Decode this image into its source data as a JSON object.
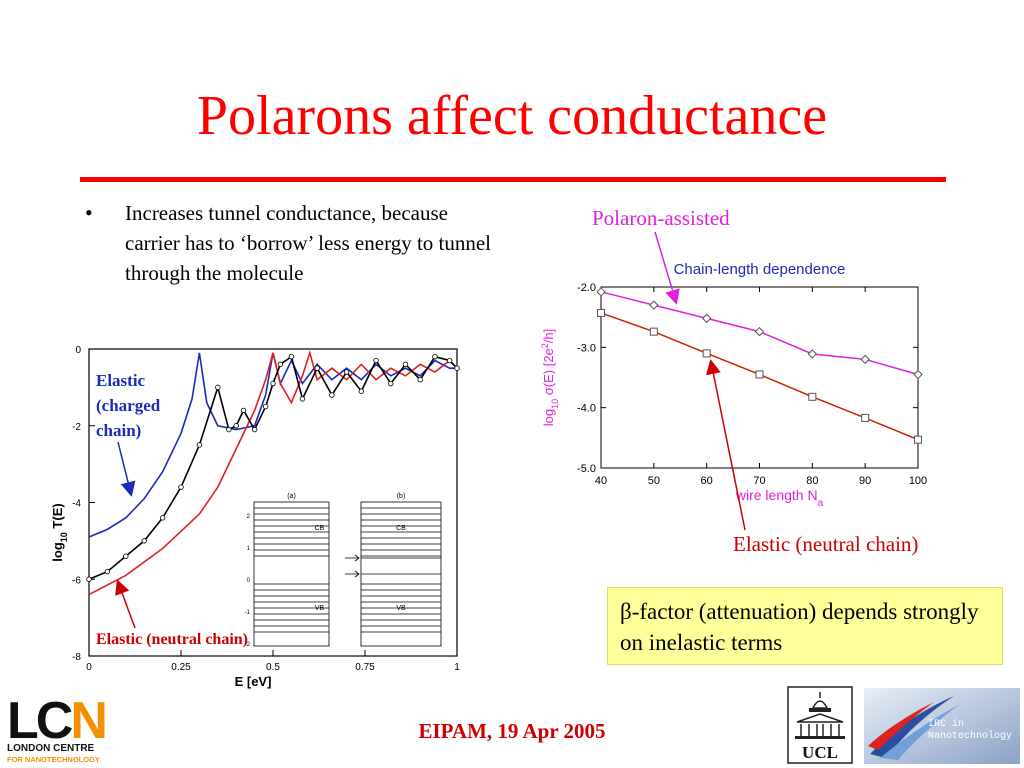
{
  "slide": {
    "title": "Polarons affect conductance",
    "bullet_symbol": "•",
    "bullet_text": "Increases tunnel conductance, because carrier has to ‘borrow’ less energy to tunnel through the molecule",
    "labels": {
      "polaron_assisted": "Polaron-assisted",
      "elastic_neutral_right": "Elastic (neutral chain)",
      "elastic_charged_line1": "Elastic",
      "elastic_charged_line2": "(charged",
      "elastic_charged_line3": "chain)",
      "elastic_neutral_left": "Elastic (neutral chain)"
    },
    "beta_box": "β-factor (attenuation) depends strongly on inelastic terms",
    "footer": "EIPAM, 19 Apr 2005",
    "logos": {
      "lcn_letters": "LCN",
      "lcn_line1": "LONDON CENTRE",
      "lcn_line2": "FOR NANOTECHNOLOGY",
      "ucl": "UCL",
      "irc_line1": "IRC in",
      "irc_line2": "Nanotechnology"
    },
    "colors": {
      "title": "#ff0000",
      "magenta": "#e020e0",
      "dark_red": "#cc0000",
      "navy": "#1a2bb8",
      "beta_bg": "#ffff99"
    }
  },
  "chart_data": [
    {
      "type": "line",
      "title": "Chain-length dependence",
      "xlabel": "wire length Na",
      "ylabel": "log10 σ(E) [2e2/h]",
      "xlim": [
        40,
        100
      ],
      "ylim": [
        -5.0,
        -2.0
      ],
      "xticks": [
        40,
        50,
        60,
        70,
        80,
        90,
        100
      ],
      "yticks": [
        -2.0,
        -3.0,
        -4.0,
        -5.0
      ],
      "series": [
        {
          "marker": "diamond",
          "color": "#e020e0",
          "x": [
            40,
            50,
            60,
            70,
            80,
            90,
            100
          ],
          "values": [
            -2.08,
            -2.3,
            -2.52,
            -2.74,
            -3.11,
            -3.2,
            -3.45
          ]
        },
        {
          "marker": "square",
          "color": "#cc2200",
          "x": [
            40,
            50,
            60,
            70,
            80,
            90,
            100
          ],
          "values": [
            -2.43,
            -2.74,
            -3.1,
            -3.45,
            -3.82,
            -4.17,
            -4.53
          ]
        }
      ]
    },
    {
      "type": "line",
      "xlabel": "E [eV]",
      "ylabel": "log10 T(E)",
      "xlim": [
        0,
        1
      ],
      "ylim": [
        -8,
        0
      ],
      "xticks": [
        "0",
        "0.25",
        "0.5",
        "0.75",
        "1"
      ],
      "yticks": [
        "0",
        "-2",
        "-4",
        "-6",
        "-8"
      ],
      "series": [
        {
          "color": "#1a2bb8",
          "x": [
            0,
            0.05,
            0.1,
            0.15,
            0.2,
            0.25,
            0.28,
            0.3,
            0.32,
            0.35,
            0.4,
            0.45,
            0.48,
            0.5,
            0.52,
            0.55,
            0.58,
            0.62,
            0.66,
            0.7,
            0.74,
            0.78,
            0.82,
            0.86,
            0.9,
            0.94,
            0.98,
            1.0
          ],
          "values": [
            -4.9,
            -4.7,
            -4.4,
            -3.9,
            -3.2,
            -2.2,
            -1.3,
            -0.1,
            -1.4,
            -2.0,
            -2.1,
            -2.0,
            -1.2,
            -0.1,
            -0.9,
            -0.3,
            -0.9,
            -0.4,
            -0.8,
            -0.5,
            -0.8,
            -0.4,
            -0.7,
            -0.5,
            -0.7,
            -0.3,
            -0.5,
            -0.5
          ]
        },
        {
          "color": "#e02020",
          "x": [
            0,
            0.1,
            0.2,
            0.3,
            0.35,
            0.4,
            0.45,
            0.48,
            0.5,
            0.52,
            0.55,
            0.58,
            0.6,
            0.62,
            0.66,
            0.7,
            0.74,
            0.78,
            0.82,
            0.86,
            0.9,
            0.94,
            0.98,
            1.0
          ],
          "values": [
            -6.4,
            -5.9,
            -5.2,
            -4.3,
            -3.6,
            -2.6,
            -1.6,
            -0.8,
            -0.1,
            -0.9,
            -1.4,
            -0.7,
            -0.1,
            -0.8,
            -0.5,
            -0.8,
            -0.4,
            -0.8,
            -0.5,
            -0.7,
            -0.4,
            -0.6,
            -0.3,
            -0.5
          ]
        },
        {
          "color": "#000000",
          "x": [
            0,
            0.05,
            0.1,
            0.15,
            0.2,
            0.25,
            0.3,
            0.35,
            0.38,
            0.4,
            0.42,
            0.45,
            0.48,
            0.5,
            0.52,
            0.55,
            0.58,
            0.62,
            0.66,
            0.7,
            0.74,
            0.78,
            0.82,
            0.86,
            0.9,
            0.94,
            0.98,
            1.0
          ],
          "values": [
            -6.0,
            -5.8,
            -5.4,
            -5.0,
            -4.4,
            -3.6,
            -2.5,
            -1.0,
            -2.1,
            -2.0,
            -1.6,
            -2.1,
            -1.5,
            -0.9,
            -0.4,
            -0.2,
            -1.3,
            -0.5,
            -1.2,
            -0.6,
            -1.1,
            -0.3,
            -0.9,
            -0.4,
            -0.8,
            -0.2,
            -0.3,
            -0.5
          ]
        }
      ],
      "inset": {
        "panels": [
          "(a)",
          "(b)"
        ],
        "yticks": [
          "2",
          "1",
          "0",
          "-1",
          "-2"
        ],
        "band_labels": [
          "CB",
          "VB"
        ]
      }
    }
  ]
}
